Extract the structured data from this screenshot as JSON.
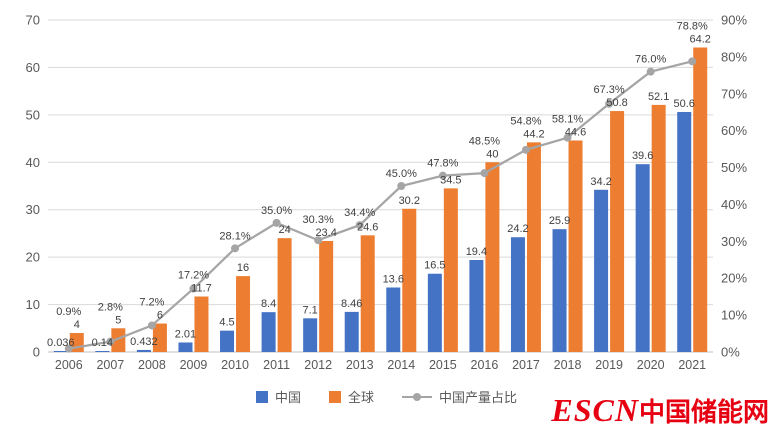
{
  "chart_data": {
    "type": "combo (bar + line)",
    "categories": [
      "2006",
      "2007",
      "2008",
      "2009",
      "2010",
      "2011",
      "2012",
      "2013",
      "2014",
      "2015",
      "2016",
      "2017",
      "2018",
      "2019",
      "2020",
      "2021"
    ],
    "series": [
      {
        "name": "中国",
        "type": "bar",
        "axis": "left",
        "color": "#4472C4",
        "values": [
          0.036,
          0.14,
          0.432,
          2.01,
          4.5,
          8.4,
          7.1,
          8.46,
          13.6,
          16.5,
          19.4,
          24.2,
          25.9,
          34.2,
          39.6,
          50.6
        ],
        "labels": [
          "0.036",
          "0.14",
          "0.432",
          "2.01",
          "4.5",
          "8.4",
          "7.1",
          "8.46",
          "13.6",
          "16.5",
          "19.4",
          "24.2",
          "25.9",
          "34.2",
          "39.6",
          "50.6"
        ]
      },
      {
        "name": "全球",
        "type": "bar",
        "axis": "left",
        "color": "#ED7D31",
        "values": [
          4,
          5,
          6,
          11.7,
          16,
          24,
          23.4,
          24.6,
          30.2,
          34.5,
          40,
          44.2,
          44.6,
          50.8,
          52.1,
          64.2
        ],
        "labels": [
          "4",
          "5",
          "6",
          "11.7",
          "16",
          "24",
          "23.4",
          "24.6",
          "30.2",
          "34.5",
          "40",
          "44.2",
          "44.6",
          "50.8",
          "52.1",
          "64.2"
        ]
      },
      {
        "name": "中国产量占比",
        "type": "line",
        "axis": "right",
        "color": "#A5A5A5",
        "values": [
          0.9,
          2.8,
          7.2,
          17.2,
          28.1,
          35.0,
          30.3,
          34.4,
          45.0,
          47.8,
          48.5,
          54.8,
          58.1,
          67.3,
          76.0,
          78.8
        ],
        "labels": [
          "0.9%",
          "2.8%",
          "7.2%",
          "17.2%",
          "28.1%",
          "35.0%",
          "30.3%",
          "34.4%",
          "45.0%",
          "47.8%",
          "48.5%",
          "54.8%",
          "58.1%",
          "67.3%",
          "76.0%",
          "78.8%"
        ]
      }
    ],
    "left_axis": {
      "min": 0,
      "max": 70,
      "step": 10,
      "ticks_bottom_to_top": [
        "0",
        "10",
        "20",
        "30",
        "40",
        "50",
        "60",
        "70"
      ]
    },
    "right_axis": {
      "min": 0,
      "max": 90,
      "step": 10,
      "ticks_bottom_to_top": [
        "0%",
        "10%",
        "20%",
        "30%",
        "40%",
        "50%",
        "60%",
        "70%",
        "80%",
        "90%"
      ]
    },
    "grid": true,
    "legend_position": "bottom"
  },
  "legend": {
    "items": [
      {
        "label": "中国",
        "swatch": "blue-square",
        "color": "#4472C4"
      },
      {
        "label": "全球",
        "swatch": "orange-square",
        "color": "#ED7D31"
      },
      {
        "label": "中国产量占比",
        "swatch": "gray-line-marker",
        "color": "#A5A5A5"
      }
    ]
  },
  "watermark": {
    "logo": "ESCN",
    "site_name": "中国储能网",
    "color": "#E60012"
  },
  "colors": {
    "china_bar": "#4472C4",
    "global_bar": "#ED7D31",
    "share_line": "#A5A5A5",
    "axis_text": "#595959",
    "data_label_text": "#404040",
    "gridline": "#D9D9D9",
    "baseline": "#BFBFBF",
    "watermark_red": "#E60012",
    "background": "#FFFFFF"
  }
}
